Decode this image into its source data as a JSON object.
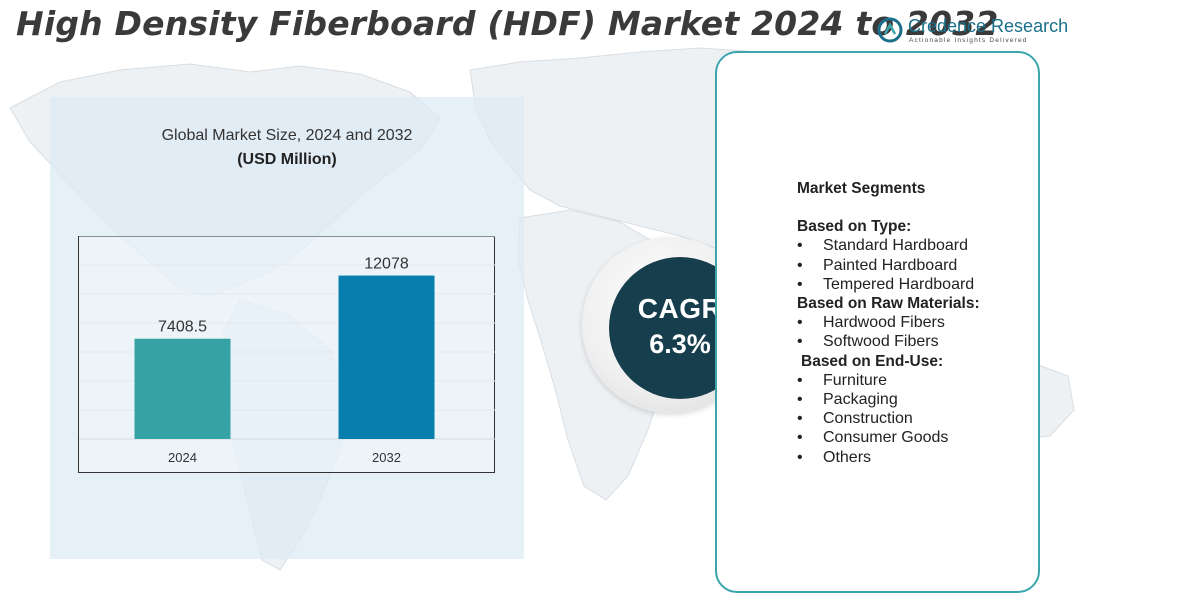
{
  "title": "High Density Fiberboard (HDF) Market 2024 to 2032",
  "brand": {
    "name": "Credence Research",
    "tagline": "Actionable Insights Delivered",
    "color": "#1b6f8a"
  },
  "chart_data": {
    "type": "bar",
    "title": "Global Market Size, 2024 and 2032",
    "subtitle": "(USD Million)",
    "categories": [
      "2024",
      "2032"
    ],
    "values": [
      7408.5,
      12078
    ],
    "value_labels": [
      "7408.5",
      "12078"
    ],
    "colors": [
      "#35a2a5",
      "#087eaf"
    ],
    "ylim": [
      0,
      15000
    ],
    "grid": true,
    "xlabel": "",
    "ylabel": ""
  },
  "cagr": {
    "label": "CAGR",
    "value": "6.3%"
  },
  "segments": {
    "heading": "Market Segments",
    "bullet": "•",
    "groups": [
      {
        "title": "Based on Type:",
        "items": [
          "Standard Hardboard",
          "Painted Hardboard",
          "Tempered Hardboard"
        ]
      },
      {
        "title": "Based on Raw Materials:",
        "items": [
          "Hardwood Fibers",
          "Softwood Fibers"
        ]
      },
      {
        "title": "Based on End-Use:",
        "items": [
          "Furniture",
          "Packaging",
          "Construction",
          "Consumer Goods",
          "Others"
        ]
      }
    ]
  }
}
